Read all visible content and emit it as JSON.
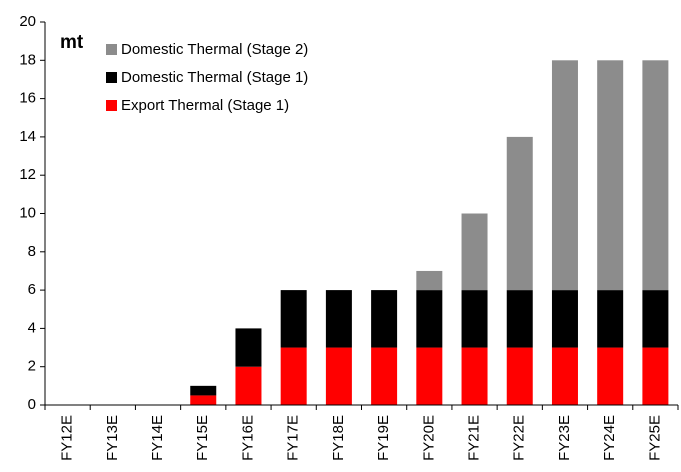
{
  "chart_data": {
    "type": "stacked_bar",
    "unit_label": "mt",
    "categories": [
      "FY12E",
      "FY13E",
      "FY14E",
      "FY15E",
      "FY16E",
      "FY17E",
      "FY18E",
      "FY19E",
      "FY20E",
      "FY21E",
      "FY22E",
      "FY23E",
      "FY24E",
      "FY25E"
    ],
    "series": [
      {
        "name": "Export Thermal (Stage 1)",
        "color": "#ff0000",
        "values": [
          0,
          0,
          0,
          0.5,
          2,
          3,
          3,
          3,
          3,
          3,
          3,
          3,
          3,
          3
        ]
      },
      {
        "name": "Domestic Thermal (Stage 1)",
        "color": "#000000",
        "values": [
          0,
          0,
          0,
          0.5,
          2,
          3,
          3,
          3,
          3,
          3,
          3,
          3,
          3,
          3
        ]
      },
      {
        "name": "Domestic Thermal (Stage 2)",
        "color": "#8c8c8c",
        "values": [
          0,
          0,
          0,
          0,
          0,
          0,
          0,
          0,
          1,
          4,
          8,
          12,
          12,
          12
        ]
      }
    ],
    "ylim": [
      0,
      20
    ],
    "yticks": [
      0,
      2,
      4,
      6,
      8,
      10,
      12,
      14,
      16,
      18,
      20
    ],
    "grid": false,
    "legend": "upper left"
  }
}
